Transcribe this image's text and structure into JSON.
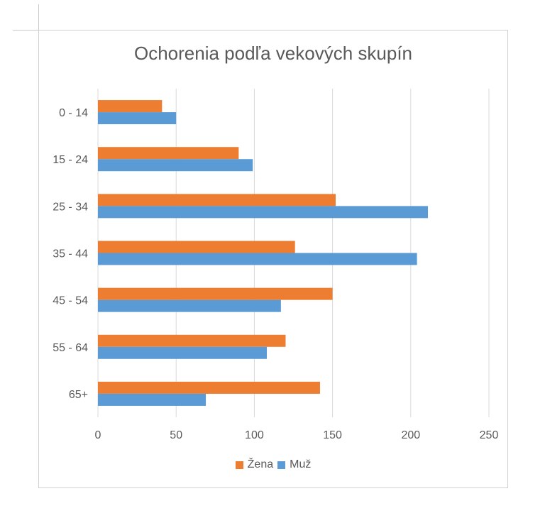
{
  "chart_data": {
    "type": "bar",
    "orientation": "horizontal",
    "title": "Ochorenia podľa vekových skupín",
    "categories": [
      "0 - 14",
      "15 - 24",
      "25 - 34",
      "35 - 44",
      "45 - 54",
      "55 - 64",
      "65+"
    ],
    "series": [
      {
        "name": "Žena",
        "color": "#ed7d31",
        "values": [
          41,
          90,
          152,
          126,
          150,
          120,
          142
        ]
      },
      {
        "name": "Muž",
        "color": "#5b9bd5",
        "values": [
          50,
          99,
          211,
          204,
          117,
          108,
          69
        ]
      }
    ],
    "xlim": [
      0,
      250
    ],
    "xticks": [
      0,
      50,
      100,
      150,
      200,
      250
    ],
    "grid": "vertical",
    "legend": "bottom"
  }
}
